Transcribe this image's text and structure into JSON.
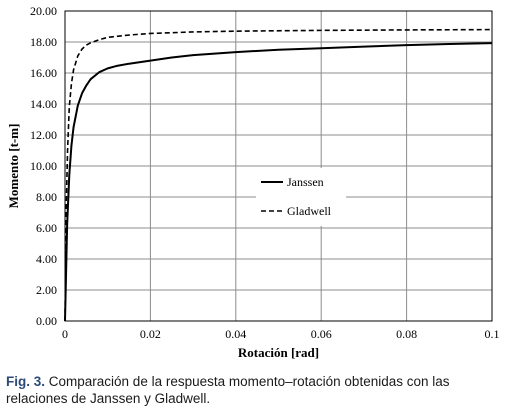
{
  "caption": {
    "label": "Fig. 3.",
    "text": " Comparación de la respuesta momento–rotación obtenidas con las relaciones de Janssen y Gladwell."
  },
  "chart_data": {
    "type": "line",
    "title": "",
    "xlabel": "Rotación [rad]",
    "ylabel": "Momento [t-m]",
    "xlim": [
      0,
      0.1
    ],
    "ylim": [
      0,
      20
    ],
    "xticks": [
      "0",
      "0.02",
      "0.04",
      "0.06",
      "0.08",
      "0.1"
    ],
    "yticks": [
      "0.00",
      "2.00",
      "4.00",
      "6.00",
      "8.00",
      "10.00",
      "12.00",
      "14.00",
      "16.00",
      "18.00",
      "20.00"
    ],
    "grid": true,
    "legend_position": "center",
    "series": [
      {
        "name": "Janssen",
        "style": "solid",
        "color": "#000000",
        "x": [
          0,
          0.0005,
          0.001,
          0.0015,
          0.002,
          0.003,
          0.004,
          0.005,
          0.006,
          0.008,
          0.01,
          0.012,
          0.015,
          0.02,
          0.025,
          0.03,
          0.04,
          0.05,
          0.06,
          0.07,
          0.08,
          0.09,
          0.1
        ],
        "y": [
          0,
          6.2,
          9.4,
          11.3,
          12.5,
          13.9,
          14.7,
          15.2,
          15.6,
          16.05,
          16.3,
          16.45,
          16.6,
          16.8,
          17.0,
          17.15,
          17.35,
          17.5,
          17.6,
          17.7,
          17.8,
          17.87,
          17.93
        ]
      },
      {
        "name": "Gladwell",
        "style": "dashed",
        "color": "#000000",
        "x": [
          0,
          0.0003,
          0.0006,
          0.001,
          0.0015,
          0.002,
          0.003,
          0.004,
          0.005,
          0.006,
          0.008,
          0.01,
          0.015,
          0.02,
          0.03,
          0.04,
          0.06,
          0.08,
          0.1
        ],
        "y": [
          0,
          7.5,
          11.0,
          13.8,
          15.3,
          16.2,
          17.1,
          17.55,
          17.8,
          17.95,
          18.15,
          18.3,
          18.45,
          18.55,
          18.65,
          18.7,
          18.75,
          18.78,
          18.8
        ]
      }
    ]
  }
}
